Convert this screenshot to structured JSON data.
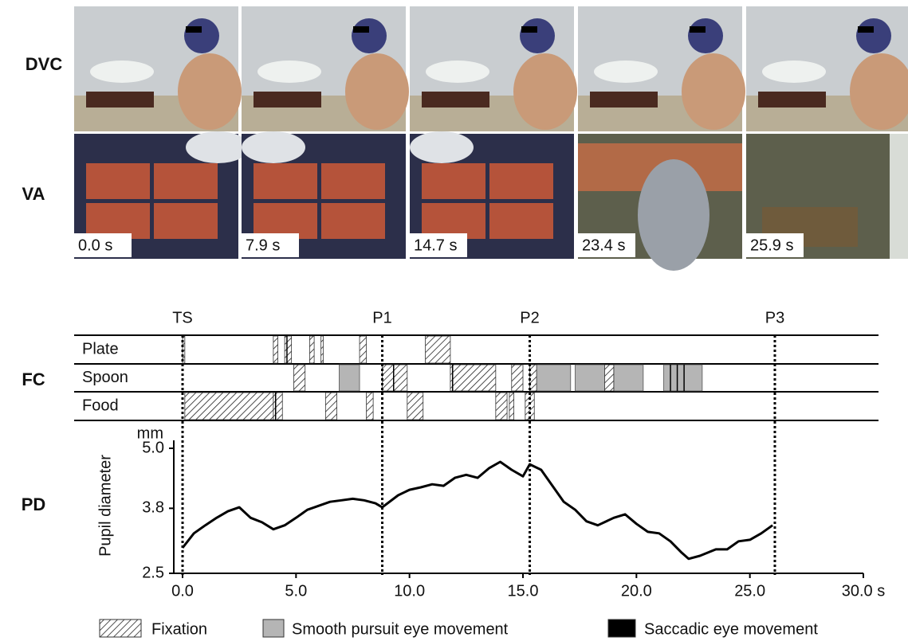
{
  "row_labels": [
    "DVC",
    "VA",
    "FC",
    "PD"
  ],
  "frames": [
    "0.0 s",
    "7.9 s",
    "14.7 s",
    "23.4 s",
    "25.9 s"
  ],
  "chart_data": {
    "type": "line",
    "xlim": [
      0,
      30
    ],
    "xticks": [
      {
        "value": 0,
        "label": "0.0"
      },
      {
        "value": 5,
        "label": "5.0"
      },
      {
        "value": 10,
        "label": "10.0"
      },
      {
        "value": 15,
        "label": "15.0"
      },
      {
        "value": 20,
        "label": "20.0"
      },
      {
        "value": 25,
        "label": "25.0"
      },
      {
        "value": 30,
        "label": "30.0 s"
      }
    ],
    "events": [
      {
        "label": "TS",
        "x": 0
      },
      {
        "label": "P1",
        "x": 8.8
      },
      {
        "label": "P2",
        "x": 15.3
      },
      {
        "label": "P3",
        "x": 26.1
      }
    ],
    "fc_rows": [
      {
        "name": "Plate",
        "fixation": [
          [
            0.0,
            0.1
          ],
          [
            4.0,
            4.2
          ],
          [
            4.5,
            4.8
          ],
          [
            5.6,
            5.8
          ],
          [
            6.1,
            6.2
          ],
          [
            7.8,
            8.1
          ],
          [
            10.7,
            11.8
          ]
        ],
        "smooth_pursuit": [],
        "saccade": [
          4.6
        ]
      },
      {
        "name": "Spoon",
        "fixation": [
          [
            4.9,
            5.4
          ],
          [
            8.8,
            9.9
          ],
          [
            11.8,
            13.8
          ],
          [
            14.5,
            15.0
          ],
          [
            15.3,
            15.6
          ],
          [
            18.6,
            19.0
          ]
        ],
        "smooth_pursuit": [
          [
            6.9,
            7.8
          ],
          [
            15.6,
            17.1
          ],
          [
            17.3,
            18.6
          ],
          [
            19.0,
            20.3
          ],
          [
            21.2,
            22.9
          ]
        ],
        "saccade": [
          9.3,
          11.9,
          21.5,
          21.8,
          22.1
        ]
      },
      {
        "name": "Food",
        "fixation": [
          [
            0.1,
            4.0
          ],
          [
            4.0,
            4.4
          ],
          [
            6.3,
            6.8
          ],
          [
            8.1,
            8.4
          ],
          [
            9.9,
            10.6
          ],
          [
            13.8,
            14.3
          ],
          [
            14.4,
            14.6
          ],
          [
            15.1,
            15.5
          ]
        ],
        "smooth_pursuit": [],
        "saccade": [
          4.1
        ]
      }
    ],
    "legend": [
      {
        "name": "Fixation",
        "fill": "hatch"
      },
      {
        "name": "Smooth pursuit eye movement",
        "color": "#b5b5b5"
      },
      {
        "name": "Saccadic eye movement",
        "color": "#000000"
      }
    ],
    "ylabel": "Pupil diameter",
    "yunit": "mm",
    "ylim": [
      2.5,
      5.0
    ],
    "yticks": [
      2.5,
      3.8,
      {
        "value": 5.0,
        "label": "5.0"
      }
    ],
    "series": [
      {
        "color": "#000000",
        "x": [
          0,
          0.5,
          1,
          1.5,
          2,
          2.5,
          3,
          3.5,
          4,
          4.5,
          5,
          5.5,
          6,
          6.5,
          7,
          7.5,
          8,
          8.5,
          8.8,
          9.5,
          10,
          10.5,
          11,
          11.5,
          12,
          12.5,
          13,
          13.5,
          14,
          14.5,
          15,
          15.3,
          15.8,
          16.3,
          16.8,
          17.3,
          17.8,
          18.3,
          19,
          19.5,
          20,
          20.5,
          21,
          21.5,
          22,
          22.3,
          22.8,
          23.5,
          24,
          24.5,
          25,
          25.5,
          26
        ],
        "values": [
          3.01,
          3.3,
          3.46,
          3.61,
          3.74,
          3.82,
          3.61,
          3.52,
          3.38,
          3.46,
          3.61,
          3.77,
          3.85,
          3.93,
          3.96,
          3.99,
          3.96,
          3.9,
          3.82,
          4.06,
          4.17,
          4.22,
          4.28,
          4.25,
          4.41,
          4.47,
          4.41,
          4.6,
          4.73,
          4.57,
          4.44,
          4.68,
          4.57,
          4.25,
          3.93,
          3.77,
          3.54,
          3.46,
          3.61,
          3.68,
          3.49,
          3.33,
          3.3,
          3.14,
          2.91,
          2.79,
          2.85,
          2.98,
          2.98,
          3.14,
          3.17,
          3.3,
          3.46
        ]
      }
    ]
  }
}
